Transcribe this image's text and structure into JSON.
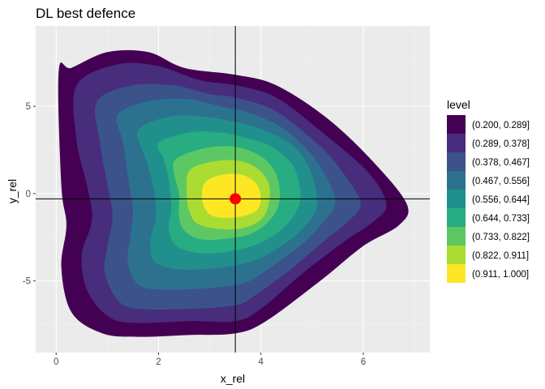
{
  "chart_data": {
    "type": "filled-contour",
    "title": "DL best defence",
    "xlabel": "x_rel",
    "ylabel": "y_rel",
    "xlim": [
      -0.4,
      7.3
    ],
    "ylim": [
      -9.1,
      9.6
    ],
    "x_ticks": [
      0,
      2,
      4,
      6
    ],
    "y_ticks": [
      -5,
      0,
      5
    ],
    "grid": true,
    "legend": {
      "title": "level",
      "position": "right",
      "entries": [
        {
          "label": "(0.200, 0.289]",
          "color": "#440154"
        },
        {
          "label": "(0.289, 0.378]",
          "color": "#472D7B"
        },
        {
          "label": "(0.378, 0.467]",
          "color": "#3B528B"
        },
        {
          "label": "(0.467, 0.556]",
          "color": "#2C728E"
        },
        {
          "label": "(0.556, 0.644]",
          "color": "#21908C"
        },
        {
          "label": "(0.644, 0.733]",
          "color": "#27AD81"
        },
        {
          "label": "(0.733, 0.822]",
          "color": "#5DC863"
        },
        {
          "label": "(0.822, 0.911]",
          "color": "#AADC32"
        },
        {
          "label": "(0.911, 1.000]",
          "color": "#FDE725"
        }
      ]
    },
    "contours": [
      {
        "level": "(0.200, 0.289]",
        "points": [
          [
            0.05,
            7.0
          ],
          [
            0.3,
            7.2
          ],
          [
            1.0,
            8.1
          ],
          [
            1.8,
            8.1
          ],
          [
            2.5,
            7.2
          ],
          [
            3.5,
            6.8
          ],
          [
            4.3,
            6.2
          ],
          [
            5.3,
            4.3
          ],
          [
            6.2,
            1.8
          ],
          [
            6.85,
            -0.6
          ],
          [
            6.7,
            -1.8
          ],
          [
            6.0,
            -3.0
          ],
          [
            5.2,
            -4.9
          ],
          [
            4.1,
            -7.3
          ],
          [
            3.5,
            -8.0
          ],
          [
            2.6,
            -8.1
          ],
          [
            1.6,
            -8.2
          ],
          [
            0.9,
            -8.0
          ],
          [
            0.3,
            -6.8
          ],
          [
            0.1,
            -4.2
          ],
          [
            0.2,
            -1.8
          ],
          [
            0.1,
            0.5
          ]
        ]
      },
      {
        "level": "(0.289, 0.378]",
        "points": [
          [
            0.4,
            6.2
          ],
          [
            1.2,
            7.4
          ],
          [
            2.0,
            7.3
          ],
          [
            2.8,
            6.5
          ],
          [
            3.5,
            6.2
          ],
          [
            4.3,
            5.5
          ],
          [
            5.2,
            3.5
          ],
          [
            6.1,
            1.2
          ],
          [
            6.45,
            -0.6
          ],
          [
            6.2,
            -1.6
          ],
          [
            5.6,
            -2.8
          ],
          [
            4.8,
            -4.6
          ],
          [
            4.0,
            -6.6
          ],
          [
            3.5,
            -7.3
          ],
          [
            2.6,
            -7.3
          ],
          [
            1.5,
            -7.4
          ],
          [
            1.0,
            -7.0
          ],
          [
            0.6,
            -5.5
          ],
          [
            0.5,
            -3.5
          ],
          [
            0.7,
            -1.5
          ],
          [
            0.6,
            0.5
          ],
          [
            0.4,
            3.0
          ]
        ]
      },
      {
        "level": "(0.378, 0.467]",
        "points": [
          [
            0.8,
            5.3
          ],
          [
            1.5,
            6.2
          ],
          [
            2.3,
            6.2
          ],
          [
            3.0,
            5.7
          ],
          [
            3.5,
            5.5
          ],
          [
            4.3,
            4.7
          ],
          [
            5.2,
            2.6
          ],
          [
            5.7,
            0.8
          ],
          [
            5.95,
            -0.6
          ],
          [
            5.7,
            -1.6
          ],
          [
            5.2,
            -2.8
          ],
          [
            4.6,
            -4.3
          ],
          [
            3.9,
            -5.8
          ],
          [
            3.5,
            -6.4
          ],
          [
            2.6,
            -6.6
          ],
          [
            1.6,
            -6.6
          ],
          [
            1.2,
            -6.1
          ],
          [
            0.95,
            -4.5
          ],
          [
            1.0,
            -3.0
          ],
          [
            1.1,
            -1.3
          ],
          [
            1.0,
            0.5
          ],
          [
            0.85,
            3.0
          ]
        ]
      },
      {
        "level": "(0.467, 0.556]",
        "points": [
          [
            1.2,
            4.5
          ],
          [
            1.8,
            5.3
          ],
          [
            2.6,
            5.4
          ],
          [
            3.2,
            5.0
          ],
          [
            3.7,
            4.7
          ],
          [
            4.4,
            3.8
          ],
          [
            5.0,
            2.2
          ],
          [
            5.35,
            0.5
          ],
          [
            5.45,
            -0.6
          ],
          [
            5.2,
            -1.7
          ],
          [
            4.8,
            -2.9
          ],
          [
            4.3,
            -4.0
          ],
          [
            3.7,
            -5.1
          ],
          [
            3.0,
            -5.4
          ],
          [
            2.1,
            -5.5
          ],
          [
            1.6,
            -5.2
          ],
          [
            1.4,
            -3.9
          ],
          [
            1.45,
            -2.5
          ],
          [
            1.5,
            -1.0
          ],
          [
            1.4,
            1.0
          ],
          [
            1.3,
            3.0
          ]
        ]
      },
      {
        "level": "(0.556, 0.644]",
        "points": [
          [
            1.6,
            3.6
          ],
          [
            2.2,
            4.4
          ],
          [
            2.9,
            4.4
          ],
          [
            3.5,
            4.1
          ],
          [
            4.0,
            3.7
          ],
          [
            4.6,
            2.8
          ],
          [
            4.95,
            1.4
          ],
          [
            5.1,
            -0.6
          ],
          [
            4.85,
            -1.9
          ],
          [
            4.4,
            -3.0
          ],
          [
            3.8,
            -3.9
          ],
          [
            3.0,
            -4.3
          ],
          [
            2.3,
            -4.3
          ],
          [
            1.9,
            -3.8
          ],
          [
            1.85,
            -2.6
          ],
          [
            1.95,
            -1.3
          ],
          [
            1.9,
            0.4
          ],
          [
            1.75,
            2.0
          ]
        ]
      },
      {
        "level": "(0.644, 0.733]",
        "points": [
          [
            2.0,
            2.9
          ],
          [
            2.6,
            3.5
          ],
          [
            3.2,
            3.5
          ],
          [
            3.7,
            3.2
          ],
          [
            4.2,
            2.7
          ],
          [
            4.6,
            1.7
          ],
          [
            4.75,
            0.5
          ],
          [
            4.75,
            -0.6
          ],
          [
            4.5,
            -1.8
          ],
          [
            4.0,
            -2.8
          ],
          [
            3.4,
            -3.3
          ],
          [
            2.8,
            -3.4
          ],
          [
            2.35,
            -3.0
          ],
          [
            2.2,
            -2.0
          ],
          [
            2.25,
            -0.8
          ],
          [
            2.2,
            0.8
          ],
          [
            2.1,
            2.0
          ]
        ]
      },
      {
        "level": "(0.733, 0.822]",
        "points": [
          [
            2.35,
            2.0
          ],
          [
            2.9,
            2.6
          ],
          [
            3.45,
            2.7
          ],
          [
            3.9,
            2.3
          ],
          [
            4.2,
            1.6
          ],
          [
            4.35,
            0.6
          ],
          [
            4.35,
            -0.6
          ],
          [
            4.15,
            -1.6
          ],
          [
            3.8,
            -2.3
          ],
          [
            3.3,
            -2.6
          ],
          [
            2.8,
            -2.6
          ],
          [
            2.5,
            -2.1
          ],
          [
            2.4,
            -1.3
          ],
          [
            2.4,
            0.0
          ],
          [
            2.3,
            1.2
          ]
        ]
      },
      {
        "level": "(0.822, 0.911]",
        "points": [
          [
            2.6,
            1.3
          ],
          [
            3.0,
            1.8
          ],
          [
            3.5,
            1.9
          ],
          [
            3.9,
            1.5
          ],
          [
            4.15,
            0.6
          ],
          [
            4.15,
            -0.6
          ],
          [
            4.0,
            -1.5
          ],
          [
            3.6,
            -2.0
          ],
          [
            3.1,
            -2.0
          ],
          [
            2.75,
            -1.7
          ],
          [
            2.6,
            -1.0
          ],
          [
            2.55,
            0.0
          ]
        ]
      },
      {
        "level": "(0.911, 1.000]",
        "points": [
          [
            2.9,
            0.6
          ],
          [
            3.2,
            1.05
          ],
          [
            3.6,
            1.1
          ],
          [
            3.9,
            0.6
          ],
          [
            4.0,
            -0.3
          ],
          [
            3.9,
            -1.0
          ],
          [
            3.55,
            -1.35
          ],
          [
            3.15,
            -1.35
          ],
          [
            2.95,
            -1.05
          ],
          [
            2.85,
            -0.3
          ]
        ]
      }
    ],
    "reference_lines": {
      "vertical_x": 3.5,
      "horizontal_y": -0.3
    },
    "marker": {
      "x": 3.5,
      "y": -0.3,
      "color": "#FF0000"
    }
  }
}
